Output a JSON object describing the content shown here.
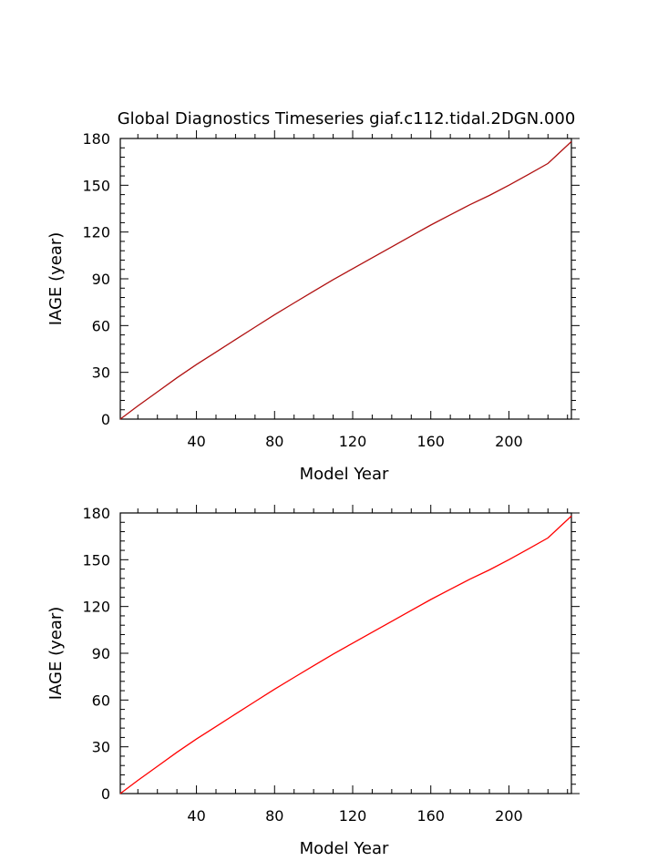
{
  "figure_title": "Global Diagnostics Timeseries giaf.c112.tidal.2DGN.000",
  "chart_data": [
    {
      "type": "line",
      "title": "Global Diagnostics Timeseries giaf.c112.tidal.2DGN.000",
      "xlabel": "Model Year",
      "ylabel": "IAGE (year)",
      "xlim": [
        1,
        232
      ],
      "ylim": [
        0,
        180
      ],
      "xticks": [
        40,
        80,
        120,
        160,
        200
      ],
      "yticks": [
        0,
        30,
        60,
        90,
        120,
        150,
        180
      ],
      "grid": false,
      "line_color": "#b01010",
      "series": [
        {
          "x": [
            1,
            10,
            20,
            30,
            40,
            50,
            60,
            70,
            80,
            90,
            100,
            110,
            120,
            130,
            140,
            150,
            160,
            170,
            180,
            190,
            200,
            210,
            220,
            232
          ],
          "values": [
            0,
            8.5,
            17.5,
            26.5,
            35,
            43,
            51,
            59,
            67,
            74.5,
            82,
            89.5,
            96.5,
            103.5,
            110.5,
            117.5,
            124.5,
            131,
            137.5,
            143.5,
            150,
            157,
            164,
            178
          ]
        }
      ]
    },
    {
      "type": "line",
      "title": "",
      "xlabel": "Model Year",
      "ylabel": "IAGE (year)",
      "xlim": [
        1,
        232
      ],
      "ylim": [
        0,
        180
      ],
      "xticks": [
        40,
        80,
        120,
        160,
        200
      ],
      "yticks": [
        0,
        30,
        60,
        90,
        120,
        150,
        180
      ],
      "grid": false,
      "line_color": "#ff0000",
      "series": [
        {
          "x": [
            1,
            10,
            20,
            30,
            40,
            50,
            60,
            70,
            80,
            90,
            100,
            110,
            120,
            130,
            140,
            150,
            160,
            170,
            180,
            190,
            200,
            210,
            220,
            232
          ],
          "values": [
            0,
            8.5,
            17.5,
            26.5,
            35,
            43,
            51,
            59,
            67,
            74.5,
            82,
            89.5,
            96.5,
            103.5,
            110.5,
            117.5,
            124.5,
            131,
            137.5,
            143.5,
            150,
            157,
            164,
            178
          ]
        }
      ]
    }
  ]
}
